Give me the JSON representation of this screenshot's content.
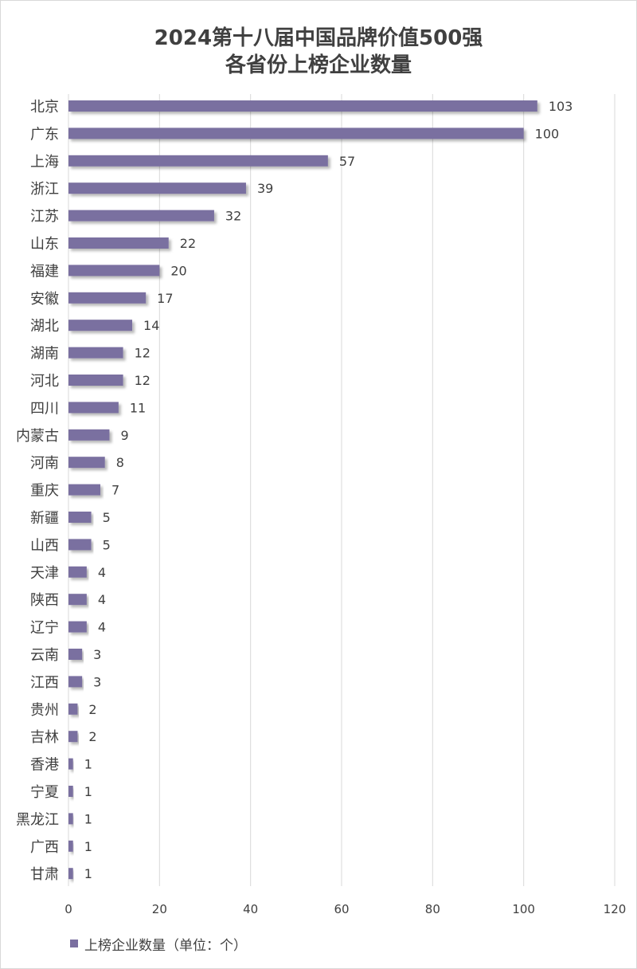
{
  "colors": {
    "bar": "#7a6fa0",
    "bar_shadow": "#c8c8c8",
    "grid": "#d9d9d9",
    "text": "#404040"
  },
  "chart_data": {
    "type": "bar",
    "orientation": "horizontal",
    "title": [
      "2024第十八届中国品牌价值500强",
      "各省份上榜企业数量"
    ],
    "categories": [
      "北京",
      "广东",
      "上海",
      "浙江",
      "江苏",
      "山东",
      "福建",
      "安徽",
      "湖北",
      "湖南",
      "河北",
      "四川",
      "内蒙古",
      "河南",
      "重庆",
      "新疆",
      "山西",
      "天津",
      "陕西",
      "辽宁",
      "云南",
      "江西",
      "贵州",
      "吉林",
      "香港",
      "宁夏",
      "黑龙江",
      "广西",
      "甘肃"
    ],
    "series": [
      {
        "name": "上榜企业数量（单位：个）",
        "values": [
          103,
          100,
          57,
          39,
          32,
          22,
          20,
          17,
          14,
          12,
          12,
          11,
          9,
          8,
          7,
          5,
          5,
          4,
          4,
          4,
          3,
          3,
          2,
          2,
          1,
          1,
          1,
          1,
          1
        ]
      }
    ],
    "xlim": [
      0,
      120
    ],
    "xticks": [
      0,
      20,
      40,
      60,
      80,
      100,
      120
    ],
    "grid": true,
    "data_labels": true,
    "legend_position": "bottom-left"
  }
}
